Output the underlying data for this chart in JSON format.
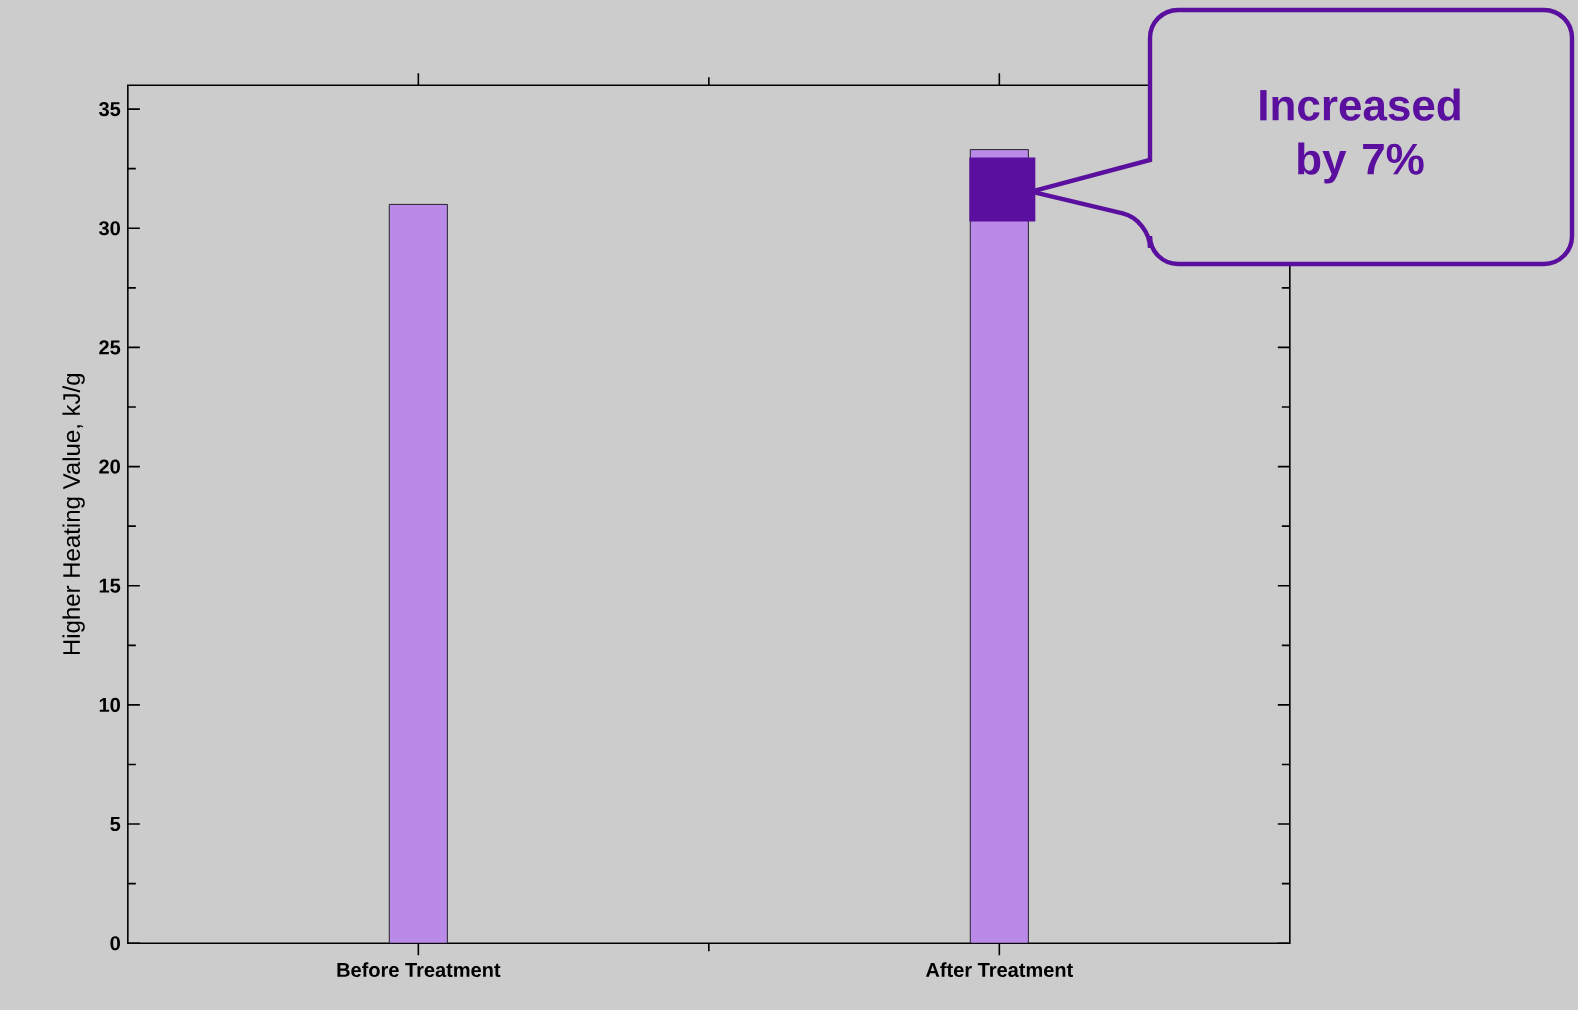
{
  "chart_data": {
    "type": "bar",
    "ylabel": "Higher Heating Value, kJ/g",
    "categories": [
      "Before Treatment",
      "After Treatment"
    ],
    "values": [
      31.0,
      33.3
    ],
    "color": "#b98ae8",
    "ylim": [
      0,
      36
    ],
    "yticks": [
      0,
      5,
      10,
      15,
      20,
      25,
      30,
      35
    ],
    "annotations": [
      "Increased by 7%"
    ]
  }
}
